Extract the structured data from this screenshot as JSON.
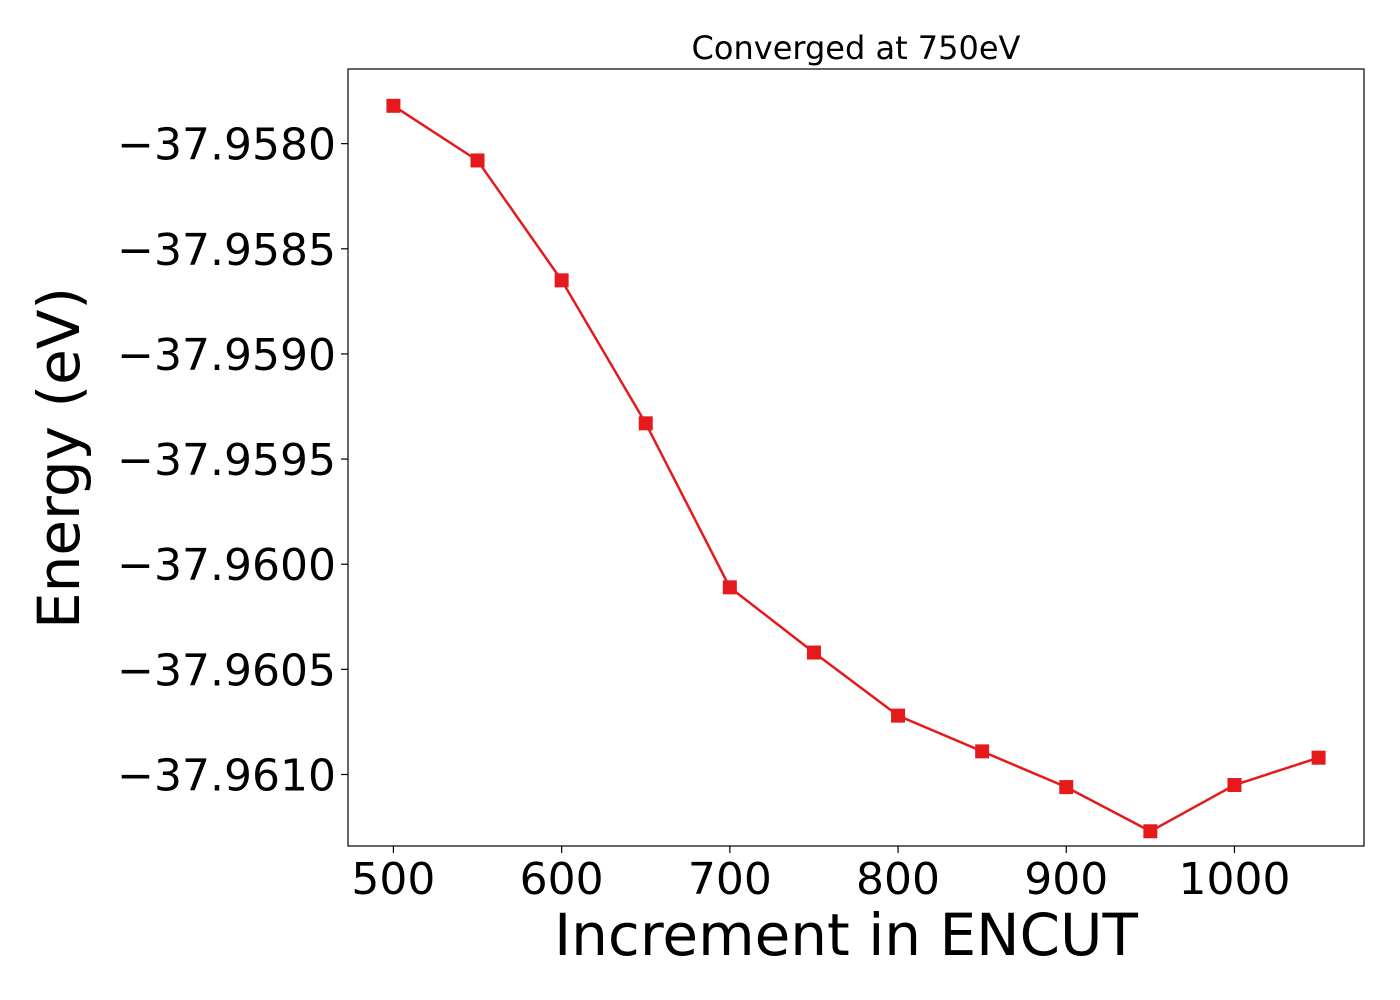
{
  "chart_data": {
    "type": "line",
    "title": "Converged at 750eV",
    "xlabel": "Increment in ENCUT",
    "ylabel": "Energy (eV)",
    "x": [
      500,
      550,
      600,
      650,
      700,
      750,
      800,
      850,
      900,
      950,
      1000,
      1050
    ],
    "series": [
      {
        "values": [
          -37.95782,
          -37.95808,
          -37.95865,
          -37.95933,
          -37.96011,
          -37.96042,
          -37.96072,
          -37.96089,
          -37.96106,
          -37.96127,
          -37.96105,
          -37.96092
        ],
        "color": "#e41a1c",
        "marker": "square"
      }
    ],
    "xlim": [
      473,
      1077
    ],
    "ylim": [
      -37.96134,
      -37.957645
    ],
    "xticks": [
      500,
      600,
      700,
      800,
      900,
      1000
    ],
    "xtick_labels": [
      "500",
      "600",
      "700",
      "800",
      "900",
      "1000"
    ],
    "yticks": [
      -37.958,
      -37.9585,
      -37.959,
      -37.9595,
      -37.96,
      -37.9605,
      -37.961
    ],
    "ytick_labels": [
      "−37.9580",
      "−37.9585",
      "−37.9590",
      "−37.9595",
      "−37.9600",
      "−37.9605",
      "−37.9610"
    ],
    "grid": false,
    "legend": "none"
  }
}
